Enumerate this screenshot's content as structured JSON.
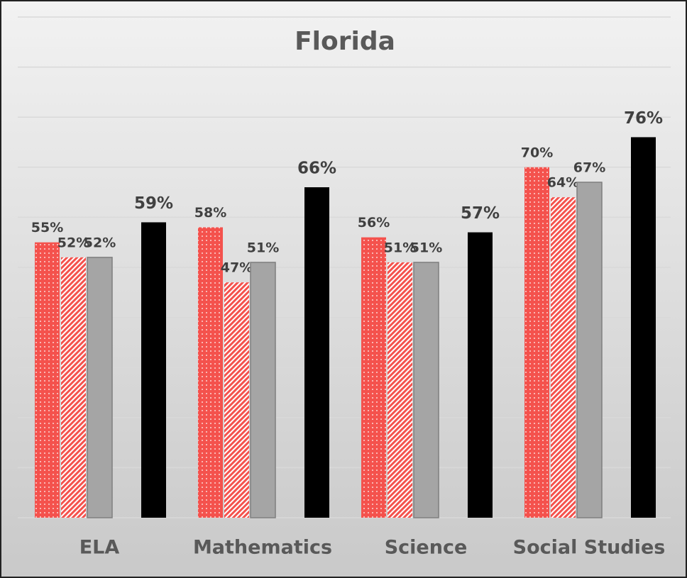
{
  "chart_data": {
    "type": "bar",
    "title": "Florida",
    "categories": [
      "ELA",
      "Mathematics",
      "Science",
      "Social Studies"
    ],
    "series": [
      {
        "color": "#f4524d",
        "pattern": "dots",
        "values": [
          55,
          58,
          56,
          70
        ],
        "value_labels": [
          "55%",
          "58%",
          "56%",
          "70%"
        ]
      },
      {
        "color": "#f4524d",
        "pattern": "hatch",
        "values": [
          52,
          47,
          51,
          64
        ],
        "value_labels": [
          "52%",
          "47%",
          "51%",
          "64%"
        ]
      },
      {
        "color": "#a5a5a5",
        "values": [
          52,
          51,
          51,
          67
        ],
        "value_labels": [
          "52%",
          "51%",
          "51%",
          "67%"
        ]
      },
      {
        "color": "#000000",
        "values": [
          59,
          66,
          57,
          76
        ],
        "value_labels": [
          "59%",
          "66%",
          "57%",
          "76%"
        ]
      }
    ],
    "ylim": [
      0,
      100
    ],
    "yticks": [
      0,
      10,
      20,
      30,
      40,
      50,
      60,
      70,
      80,
      90,
      100
    ],
    "grid": true
  }
}
